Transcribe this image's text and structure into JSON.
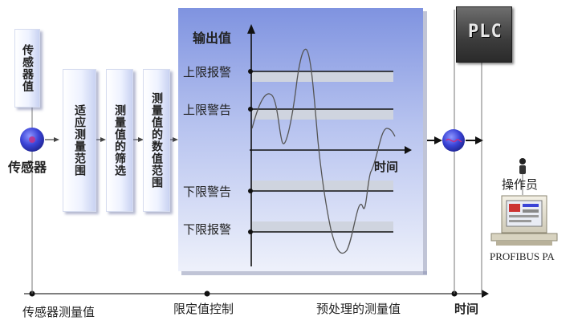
{
  "boxes": {
    "sensor_value": "传感器值",
    "adapt_range": "适应测量范围",
    "filter": "测量值的筛选",
    "numeric_range": "测量值的数值范围"
  },
  "labels": {
    "sensor": "传感器",
    "output_value": "输出值",
    "upper_alarm": "上限报警",
    "upper_warning": "上限警告",
    "lower_warning": "下限警告",
    "lower_alarm": "下限报警",
    "time_axis": "时间",
    "operator": "操作员",
    "profibus": "PROFIBUS PA",
    "plc": "PLC"
  },
  "bottom": {
    "sensor_measured": "传感器测量值",
    "limit_control": "限定值控制",
    "preprocessed": "预处理的测量值",
    "time": "时间"
  },
  "colors": {
    "panel_top": "#7f93e0",
    "panel_bottom": "#eef1fb",
    "band": "#cfd4df",
    "sensor_node": "#3a43d6",
    "node_accent": "#c0308a"
  }
}
